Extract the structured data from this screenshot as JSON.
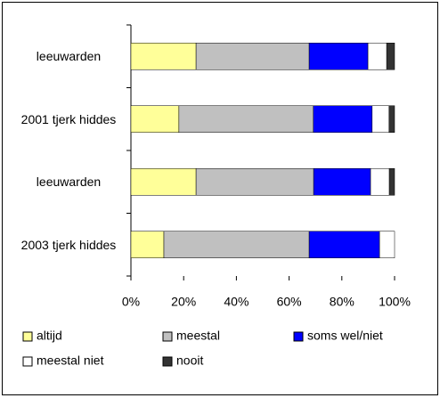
{
  "chart_data": {
    "type": "bar",
    "orientation": "horizontal",
    "stacked": true,
    "categories": [
      "leeuwarden",
      "2001 tjerk hiddes",
      "leeuwarden",
      "2003 tjerk hiddes"
    ],
    "series": [
      {
        "name": "altijd",
        "color": "#ffff99",
        "values": [
          24.7,
          18.2,
          24.7,
          12.5
        ]
      },
      {
        "name": "meestal",
        "color": "#c0c0c0",
        "values": [
          42.9,
          51,
          44.6,
          55.1
        ]
      },
      {
        "name": "soms wel/niet",
        "color": "#0000ff",
        "values": [
          22.3,
          22.3,
          21.6,
          26.7
        ]
      },
      {
        "name": "meestal niet",
        "color": "#ffffff",
        "values": [
          7.1,
          6.4,
          7.1,
          5.7
        ]
      },
      {
        "name": "nooit",
        "color": "#333333",
        "values": [
          3,
          2.1,
          2,
          0
        ]
      }
    ],
    "xlim": [
      0,
      100
    ],
    "xticks": [
      {
        "value": 0,
        "label": "0%"
      },
      {
        "value": 20,
        "label": "20%"
      },
      {
        "value": 40,
        "label": "40%"
      },
      {
        "value": 60,
        "label": "60%"
      },
      {
        "value": 80,
        "label": "80%"
      },
      {
        "value": 100,
        "label": "100%"
      }
    ],
    "legend": "bottom"
  }
}
